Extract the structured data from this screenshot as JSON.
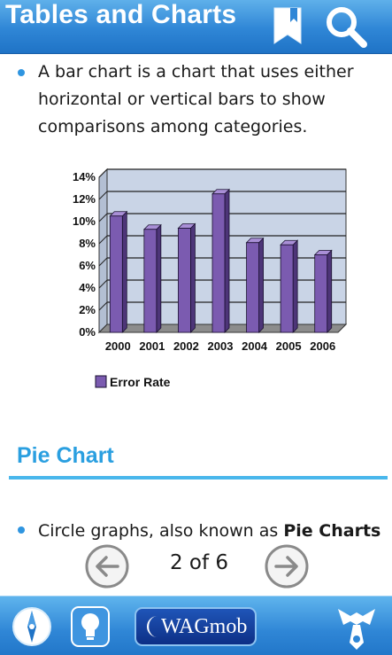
{
  "header": {
    "title": "Tables and Charts",
    "bookmark_icon": "bookmark-icon",
    "search_icon": "search-icon"
  },
  "content": {
    "intro_bullet": {
      "lines": [
        "A bar chart is a chart that uses either",
        "horizontal or vertical bars to show",
        "comparisons among categories."
      ]
    },
    "section_heading": "Pie Chart",
    "pie_bullet": {
      "text_before": "Circle graphs, also known as ",
      "text_bold": "Pie Charts",
      "text_after": ","
    }
  },
  "chart_data": {
    "type": "bar",
    "style": "3d",
    "categories": [
      "2000",
      "2001",
      "2002",
      "2003",
      "2004",
      "2005",
      "2006"
    ],
    "series": [
      {
        "name": "Error Rate",
        "values": [
          10.5,
          9.3,
          9.4,
          12.5,
          8.1,
          7.9,
          7.0
        ],
        "color": "#7b5bb0"
      }
    ],
    "y_ticks": [
      "0%",
      "2%",
      "4%",
      "6%",
      "8%",
      "10%",
      "12%",
      "14%"
    ],
    "ylim": [
      0,
      14
    ],
    "grid": true,
    "legend_placement": "bottom-left",
    "colors": {
      "bar": "#7b5bb0",
      "bar_side": "#4d3578",
      "bar_top": "#a98fd6",
      "plot_back": "#c9d4e6",
      "floor": "#8c8c8c"
    }
  },
  "pager": {
    "label": "2 of 6",
    "prev_icon": "left-arrow-icon",
    "next_icon": "right-arrow-icon"
  },
  "bottom_bar": {
    "compass_icon": "compass-icon",
    "bulb_icon": "lightbulb-icon",
    "brand_label": "WAGmob",
    "tie_icon": "tie-icon"
  },
  "colors": {
    "header": "#2f86d6",
    "accent": "#2a9fe0",
    "bullet": "#2f95e0"
  }
}
